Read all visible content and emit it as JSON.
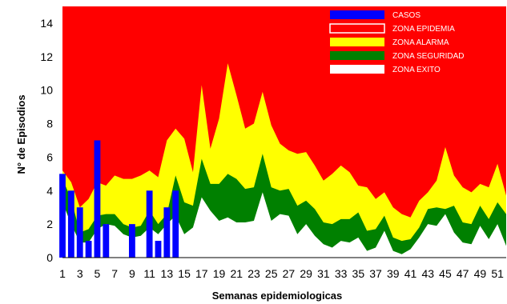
{
  "chart_data": {
    "type": "area",
    "xlabel": "Semanas epidemiologicas",
    "ylabel": "N° de Episodios",
    "ylim": [
      0,
      15
    ],
    "xlim": [
      1,
      52
    ],
    "yticks": [
      0,
      2,
      4,
      6,
      8,
      10,
      12,
      14
    ],
    "xticks": [
      1,
      3,
      5,
      7,
      9,
      11,
      13,
      15,
      17,
      19,
      21,
      23,
      25,
      27,
      29,
      31,
      33,
      35,
      37,
      39,
      41,
      43,
      45,
      47,
      49,
      51
    ],
    "grid": false,
    "legend_position": "top-right",
    "colors": {
      "epidemia": "#ff0000",
      "alarma": "#ffff00",
      "seguridad": "#008000",
      "exito": "#ffffff",
      "casos": "#0000ff"
    },
    "legend": [
      {
        "key": "casos",
        "label": "CASOS"
      },
      {
        "key": "epidemia",
        "label": "ZONA EPIDEMIA"
      },
      {
        "key": "alarma",
        "label": "ZONA ALARMA"
      },
      {
        "key": "seguridad",
        "label": "ZONA SEGURIDAD"
      },
      {
        "key": "exito",
        "label": "ZONA EXITO"
      }
    ],
    "weeks": [
      1,
      2,
      3,
      4,
      5,
      6,
      7,
      8,
      9,
      10,
      11,
      12,
      13,
      14,
      15,
      16,
      17,
      18,
      19,
      20,
      21,
      22,
      23,
      24,
      25,
      26,
      27,
      28,
      29,
      30,
      31,
      32,
      33,
      34,
      35,
      36,
      37,
      38,
      39,
      40,
      41,
      42,
      43,
      44,
      45,
      46,
      47,
      48,
      49,
      50,
      51,
      52
    ],
    "zona_alarma_upper": [
      5.2,
      4.5,
      3.0,
      3.5,
      4.5,
      4.3,
      4.9,
      4.7,
      4.7,
      4.9,
      5.2,
      4.8,
      7.0,
      7.7,
      7.1,
      5.1,
      10.3,
      6.5,
      8.3,
      11.6,
      9.7,
      7.7,
      8.0,
      9.9,
      7.9,
      6.8,
      6.4,
      6.2,
      6.3,
      5.5,
      4.6,
      5.0,
      5.5,
      5.1,
      4.3,
      4.2,
      3.5,
      3.9,
      3.0,
      2.6,
      2.4,
      3.4,
      3.9,
      4.6,
      6.6,
      4.9,
      4.2,
      3.9,
      4.4,
      4.2,
      5.6,
      3.7
    ],
    "zona_seguridad_upper": [
      4.7,
      3.5,
      1.5,
      1.7,
      2.5,
      2.6,
      2.6,
      2.0,
      1.8,
      1.9,
      2.8,
      2.0,
      2.6,
      4.9,
      3.3,
      3.1,
      5.9,
      4.4,
      4.4,
      5.0,
      4.7,
      4.1,
      4.2,
      6.2,
      4.2,
      4.0,
      4.1,
      3.1,
      3.4,
      2.9,
      2.1,
      2.0,
      2.3,
      2.3,
      2.7,
      1.6,
      1.7,
      2.5,
      1.2,
      1.0,
      1.1,
      1.8,
      2.9,
      3.0,
      2.9,
      3.1,
      2.1,
      2.0,
      3.1,
      2.3,
      3.3,
      2.6
    ],
    "zona_exito_upper": [
      3.3,
      2.0,
      0.9,
      0.9,
      1.7,
      2.0,
      1.9,
      1.4,
      1.2,
      1.3,
      1.8,
      1.4,
      2.0,
      2.5,
      1.4,
      1.8,
      3.6,
      2.8,
      2.2,
      2.4,
      2.1,
      2.1,
      2.2,
      3.9,
      2.2,
      2.6,
      2.5,
      1.4,
      2.0,
      1.3,
      0.8,
      0.6,
      1.0,
      0.9,
      1.2,
      0.4,
      0.6,
      1.6,
      0.4,
      0.2,
      0.5,
      1.2,
      2.0,
      1.9,
      2.6,
      1.5,
      0.9,
      0.8,
      1.9,
      1.1,
      2.0,
      0.7
    ],
    "casos": [
      5,
      4,
      3,
      1,
      7,
      2,
      0,
      0,
      2,
      0,
      4,
      1,
      3,
      4,
      0,
      0,
      0,
      0,
      0,
      0,
      0,
      0,
      0,
      0,
      0,
      0,
      0,
      0,
      0,
      0,
      0,
      0,
      0,
      0,
      0,
      0,
      0,
      0,
      0,
      0,
      0,
      0,
      0,
      0,
      0,
      0,
      0,
      0,
      0,
      0,
      0,
      0
    ]
  }
}
